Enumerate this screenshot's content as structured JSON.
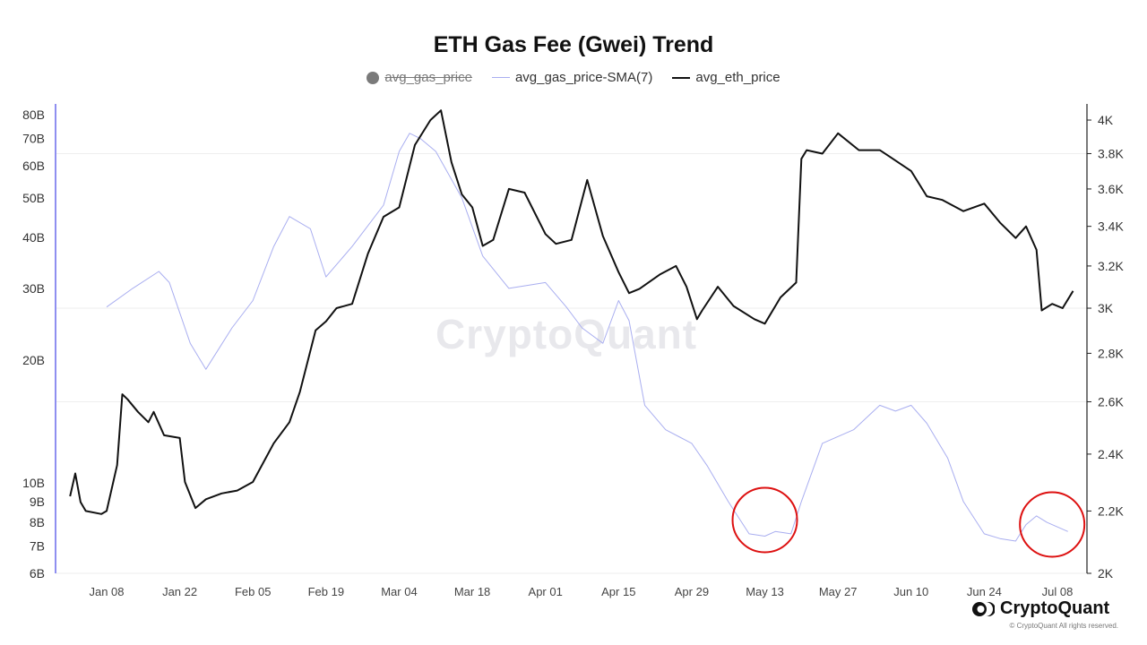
{
  "chart_data": {
    "type": "line",
    "title": "ETH Gas Fee (Gwei) Trend",
    "legend": [
      {
        "name": "avg_gas_price",
        "disabled": true,
        "color": "#7a7a7a"
      },
      {
        "name": "avg_gas_price-SMA(7)",
        "color": "#a9aef0"
      },
      {
        "name": "avg_eth_price",
        "color": "#111111"
      }
    ],
    "legend_placement": "top-center",
    "grid": true,
    "x_ticks": [
      "Jan 08",
      "Jan 22",
      "Feb 05",
      "Feb 19",
      "Mar 04",
      "Mar 18",
      "Apr 01",
      "Apr 15",
      "Apr 29",
      "May 13",
      "May 27",
      "Jun 10",
      "Jun 24",
      "Jul 08"
    ],
    "y_left": {
      "scale": "log",
      "range": [
        6000000000,
        85000000000
      ],
      "ticks": [
        {
          "v": 6000000000,
          "label": "6B"
        },
        {
          "v": 7000000000,
          "label": "7B"
        },
        {
          "v": 8000000000,
          "label": "8B"
        },
        {
          "v": 9000000000,
          "label": "9B"
        },
        {
          "v": 10000000000,
          "label": "10B"
        },
        {
          "v": 20000000000,
          "label": "20B"
        },
        {
          "v": 30000000000,
          "label": "30B"
        },
        {
          "v": 40000000000,
          "label": "40B"
        },
        {
          "v": 50000000000,
          "label": "50B"
        },
        {
          "v": 60000000000,
          "label": "60B"
        },
        {
          "v": 70000000000,
          "label": "70B"
        },
        {
          "v": 80000000000,
          "label": "80B"
        }
      ]
    },
    "y_right": {
      "scale": "log",
      "range": [
        2000,
        4100
      ],
      "ticks": [
        {
          "v": 2000,
          "label": "2K"
        },
        {
          "v": 2200,
          "label": "2.2K"
        },
        {
          "v": 2400,
          "label": "2.4K"
        },
        {
          "v": 2600,
          "label": "2.6K"
        },
        {
          "v": 2800,
          "label": "2.8K"
        },
        {
          "v": 3000,
          "label": "3K"
        },
        {
          "v": 3200,
          "label": "3.2K"
        },
        {
          "v": 3400,
          "label": "3.4K"
        },
        {
          "v": 3600,
          "label": "3.6K"
        },
        {
          "v": 3800,
          "label": "3.8K"
        },
        {
          "v": 4000,
          "label": "4K"
        }
      ]
    },
    "series": [
      {
        "name": "avg_gas_price-SMA(7)",
        "axis": "left",
        "color": "#a9aef0",
        "x": [
          "2024-01-08",
          "2024-01-13",
          "2024-01-18",
          "2024-01-20",
          "2024-01-24",
          "2024-01-27",
          "2024-02-01",
          "2024-02-05",
          "2024-02-09",
          "2024-02-12",
          "2024-02-16",
          "2024-02-19",
          "2024-02-24",
          "2024-03-01",
          "2024-03-04",
          "2024-03-06",
          "2024-03-08",
          "2024-03-11",
          "2024-03-16",
          "2024-03-20",
          "2024-03-25",
          "2024-04-01",
          "2024-04-05",
          "2024-04-08",
          "2024-04-12",
          "2024-04-15",
          "2024-04-17",
          "2024-04-20",
          "2024-04-24",
          "2024-04-29",
          "2024-05-02",
          "2024-05-06",
          "2024-05-10",
          "2024-05-13",
          "2024-05-15",
          "2024-05-18",
          "2024-05-20",
          "2024-05-24",
          "2024-05-30",
          "2024-06-04",
          "2024-06-07",
          "2024-06-10",
          "2024-06-13",
          "2024-06-17",
          "2024-06-20",
          "2024-06-24",
          "2024-06-27",
          "2024-06-30",
          "2024-07-02",
          "2024-07-04",
          "2024-07-06",
          "2024-07-10"
        ],
        "values": [
          27000000000,
          30000000000,
          33000000000,
          31000000000,
          22000000000,
          19000000000,
          24000000000,
          28000000000,
          38000000000,
          45000000000,
          42000000000,
          32000000000,
          38000000000,
          48000000000,
          65000000000,
          72000000000,
          70000000000,
          65000000000,
          50000000000,
          36000000000,
          30000000000,
          31000000000,
          27000000000,
          24000000000,
          22000000000,
          28000000000,
          25000000000,
          15500000000,
          13500000000,
          12500000000,
          11000000000,
          9000000000,
          7500000000,
          7400000000,
          7600000000,
          7500000000,
          9000000000,
          12500000000,
          13500000000,
          15500000000,
          15000000000,
          15500000000,
          14000000000,
          11500000000,
          9000000000,
          7500000000,
          7300000000,
          7200000000,
          7900000000,
          8300000000,
          8000000000,
          7600000000
        ]
      },
      {
        "name": "avg_eth_price",
        "axis": "right",
        "color": "#111111",
        "x": [
          "2024-01-01",
          "2024-01-02",
          "2024-01-03",
          "2024-01-04",
          "2024-01-07",
          "2024-01-08",
          "2024-01-10",
          "2024-01-11",
          "2024-01-12",
          "2024-01-14",
          "2024-01-16",
          "2024-01-17",
          "2024-01-19",
          "2024-01-22",
          "2024-01-23",
          "2024-01-25",
          "2024-01-27",
          "2024-01-30",
          "2024-02-02",
          "2024-02-05",
          "2024-02-09",
          "2024-02-12",
          "2024-02-14",
          "2024-02-17",
          "2024-02-19",
          "2024-02-21",
          "2024-02-24",
          "2024-02-27",
          "2024-03-01",
          "2024-03-04",
          "2024-03-07",
          "2024-03-10",
          "2024-03-12",
          "2024-03-14",
          "2024-03-16",
          "2024-03-18",
          "2024-03-20",
          "2024-03-22",
          "2024-03-25",
          "2024-03-28",
          "2024-04-01",
          "2024-04-03",
          "2024-04-06",
          "2024-04-09",
          "2024-04-12",
          "2024-04-15",
          "2024-04-17",
          "2024-04-19",
          "2024-04-23",
          "2024-04-26",
          "2024-04-28",
          "2024-04-30",
          "2024-05-01",
          "2024-05-04",
          "2024-05-07",
          "2024-05-11",
          "2024-05-13",
          "2024-05-16",
          "2024-05-19",
          "2024-05-20",
          "2024-05-21",
          "2024-05-24",
          "2024-05-27",
          "2024-05-31",
          "2024-06-04",
          "2024-06-06",
          "2024-06-10",
          "2024-06-13",
          "2024-06-16",
          "2024-06-20",
          "2024-06-24",
          "2024-06-27",
          "2024-06-30",
          "2024-07-02",
          "2024-07-04",
          "2024-07-05",
          "2024-07-07",
          "2024-07-09",
          "2024-07-11"
        ],
        "values": [
          2250,
          2330,
          2230,
          2200,
          2190,
          2200,
          2360,
          2630,
          2610,
          2560,
          2520,
          2560,
          2470,
          2460,
          2300,
          2210,
          2240,
          2260,
          2270,
          2300,
          2440,
          2520,
          2640,
          2900,
          2940,
          3000,
          3020,
          3260,
          3450,
          3500,
          3850,
          4000,
          4060,
          3750,
          3570,
          3500,
          3300,
          3330,
          3600,
          3580,
          3360,
          3310,
          3330,
          3650,
          3350,
          3170,
          3070,
          3090,
          3160,
          3200,
          3100,
          2950,
          2990,
          3100,
          3010,
          2950,
          2930,
          3050,
          3120,
          3770,
          3820,
          3800,
          3920,
          3820,
          3820,
          3780,
          3700,
          3560,
          3540,
          3480,
          3520,
          3420,
          3340,
          3400,
          3280,
          2990,
          3020,
          3000,
          3080
        ]
      }
    ],
    "annotations": [
      {
        "type": "circle",
        "color": "#dd1111",
        "x": "2024-05-13",
        "y_right": 2170
      },
      {
        "type": "circle",
        "color": "#dd1111",
        "x": "2024-07-07",
        "y_right": 2155
      }
    ]
  },
  "watermark": "CryptoQuant",
  "brand": {
    "name": "CryptoQuant",
    "copyright": "© CryptoQuant All rights reserved."
  }
}
